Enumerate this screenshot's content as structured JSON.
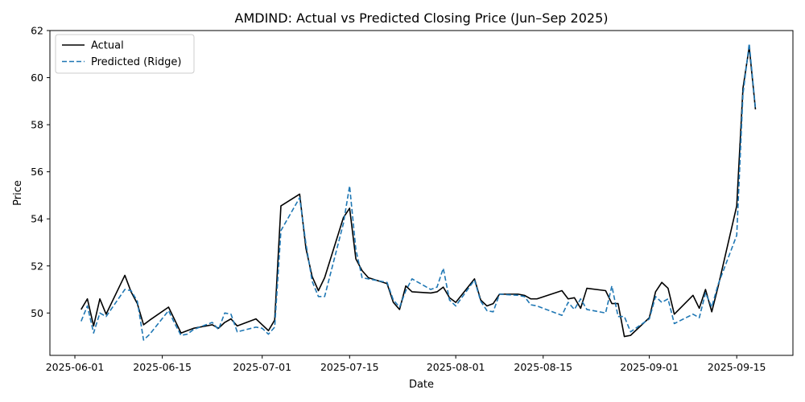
{
  "chart_data": {
    "type": "line",
    "title": "AMDIND: Actual vs Predicted Closing Price (Jun–Sep 2025)",
    "xlabel": "Date",
    "ylabel": "Price",
    "xlim": [
      "2025-05-28",
      "2025-09-24"
    ],
    "ylim": [
      48.2,
      62.0
    ],
    "grid": false,
    "legend_position": "top-left",
    "x_ticks": [
      "2025-06-01",
      "2025-06-15",
      "2025-07-01",
      "2025-07-15",
      "2025-08-01",
      "2025-08-15",
      "2025-09-01",
      "2025-09-15"
    ],
    "y_ticks": [
      50,
      52,
      54,
      56,
      58,
      60,
      62
    ],
    "x": [
      "2025-06-02",
      "2025-06-03",
      "2025-06-04",
      "2025-06-05",
      "2025-06-06",
      "2025-06-09",
      "2025-06-10",
      "2025-06-11",
      "2025-06-12",
      "2025-06-13",
      "2025-06-16",
      "2025-06-17",
      "2025-06-18",
      "2025-06-19",
      "2025-06-20",
      "2025-06-23",
      "2025-06-24",
      "2025-06-25",
      "2025-06-26",
      "2025-06-27",
      "2025-06-30",
      "2025-07-01",
      "2025-07-02",
      "2025-07-03",
      "2025-07-04",
      "2025-07-07",
      "2025-07-08",
      "2025-07-09",
      "2025-07-10",
      "2025-07-11",
      "2025-07-14",
      "2025-07-15",
      "2025-07-16",
      "2025-07-17",
      "2025-07-18",
      "2025-07-21",
      "2025-07-22",
      "2025-07-23",
      "2025-07-24",
      "2025-07-25",
      "2025-07-28",
      "2025-07-29",
      "2025-07-30",
      "2025-07-31",
      "2025-08-01",
      "2025-08-04",
      "2025-08-05",
      "2025-08-06",
      "2025-08-07",
      "2025-08-08",
      "2025-08-11",
      "2025-08-12",
      "2025-08-13",
      "2025-08-14",
      "2025-08-18",
      "2025-08-19",
      "2025-08-20",
      "2025-08-21",
      "2025-08-22",
      "2025-08-25",
      "2025-08-26",
      "2025-08-27",
      "2025-08-28",
      "2025-08-29",
      "2025-09-01",
      "2025-09-02",
      "2025-09-03",
      "2025-09-04",
      "2025-09-05",
      "2025-09-08",
      "2025-09-09",
      "2025-09-10",
      "2025-09-11",
      "2025-09-12",
      "2025-09-15",
      "2025-09-16",
      "2025-09-17",
      "2025-09-18"
    ],
    "series": [
      {
        "name": "Actual",
        "color": "#000000",
        "dash": "solid",
        "values": [
          50.15,
          50.6,
          49.45,
          50.6,
          49.95,
          51.6,
          50.9,
          50.4,
          49.5,
          49.7,
          50.25,
          49.7,
          49.15,
          49.25,
          49.35,
          49.5,
          49.35,
          49.6,
          49.75,
          49.45,
          49.75,
          49.5,
          49.25,
          49.7,
          54.55,
          55.05,
          52.75,
          51.55,
          50.95,
          51.5,
          54.05,
          54.45,
          52.3,
          51.8,
          51.5,
          51.25,
          50.45,
          50.15,
          51.15,
          50.9,
          50.85,
          50.9,
          51.1,
          50.65,
          50.45,
          51.45,
          50.55,
          50.3,
          50.4,
          50.8,
          50.8,
          50.75,
          50.6,
          50.6,
          50.95,
          50.6,
          50.65,
          50.2,
          51.05,
          50.95,
          50.4,
          50.4,
          49.0,
          49.05,
          49.8,
          50.9,
          51.3,
          51.05,
          49.95,
          50.75,
          50.2,
          51.0,
          50.05,
          51.1,
          54.55,
          59.55,
          61.3,
          58.65
        ]
      },
      {
        "name": "Predicted (Ridge)",
        "color": "#1f77b4",
        "dash": "dashed",
        "values": [
          49.65,
          50.3,
          49.15,
          50.0,
          49.85,
          51.0,
          50.95,
          50.5,
          48.85,
          49.1,
          50.1,
          49.55,
          49.05,
          49.1,
          49.3,
          49.6,
          49.3,
          50.0,
          49.95,
          49.2,
          49.4,
          49.35,
          49.1,
          49.4,
          53.5,
          54.9,
          52.95,
          51.35,
          50.7,
          50.7,
          53.8,
          55.4,
          52.7,
          51.5,
          51.45,
          51.3,
          50.55,
          50.25,
          50.95,
          51.45,
          51.0,
          51.1,
          51.9,
          50.55,
          50.3,
          51.4,
          50.5,
          50.1,
          50.05,
          50.8,
          50.75,
          50.7,
          50.35,
          50.3,
          49.9,
          50.45,
          50.15,
          50.6,
          50.15,
          50.0,
          51.15,
          49.85,
          49.85,
          49.2,
          49.75,
          50.7,
          50.45,
          50.6,
          49.55,
          49.95,
          49.8,
          50.85,
          50.25,
          51.2,
          53.3,
          59.3,
          61.45,
          58.7
        ]
      }
    ]
  }
}
